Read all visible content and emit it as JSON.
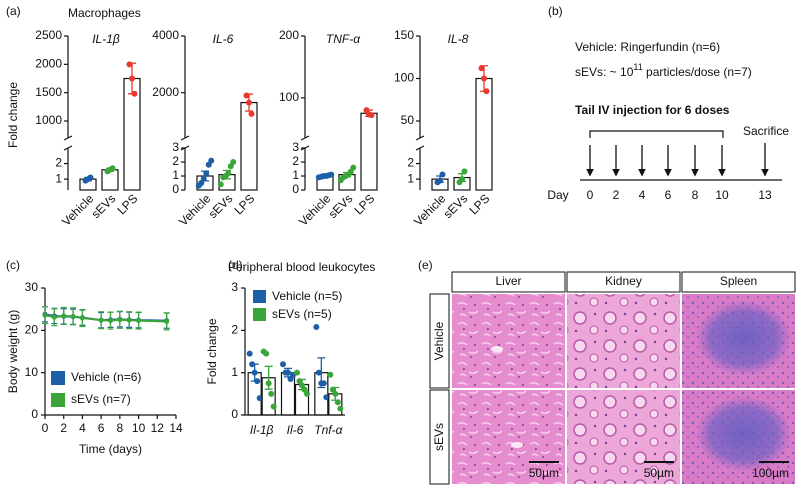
{
  "panel_labels": [
    "(a)",
    "(b)",
    "(c)",
    "(d)",
    "(e)"
  ],
  "panel_a": {
    "title": "Macrophages",
    "ylabel": "Fold change"
  },
  "chart_data": [
    {
      "type": "broken_bar",
      "title": "IL-1β",
      "categories": [
        "Vehicle",
        "sEVs",
        "LPS"
      ],
      "colors": [
        "#1f5fa8",
        "#3aa63a",
        "#e8392e"
      ],
      "values": [
        1.0,
        1.6,
        1750
      ],
      "errors": [
        0.1,
        0.1,
        270
      ],
      "points": [
        [
          0.9,
          1.0,
          1.1
        ],
        [
          1.5,
          1.6,
          1.7
        ],
        [
          2000,
          1750,
          1480
        ]
      ],
      "segments": [
        {
          "ylim": [
            0.3,
            3
          ],
          "yticks": [
            1,
            2
          ]
        },
        {
          "ylim": [
            700,
            2500
          ],
          "yticks": [
            1000,
            1500,
            2000,
            2500
          ]
        }
      ]
    },
    {
      "type": "broken_bar",
      "title": "IL-6",
      "categories": [
        "Vehicle",
        "sEVs",
        "LPS"
      ],
      "colors": [
        "#1f5fa8",
        "#3aa63a",
        "#e8392e"
      ],
      "values": [
        1.0,
        1.1,
        1650
      ],
      "errors": [
        0.35,
        0.3,
        300
      ],
      "points": [
        [
          0.3,
          0.5,
          0.8,
          1.2,
          1.8,
          2.1
        ],
        [
          0.4,
          0.9,
          1.0,
          1.2,
          1.7,
          2.0
        ],
        [
          1900,
          1650,
          1250
        ]
      ],
      "segments": [
        {
          "ylim": [
            0,
            3
          ],
          "yticks": [
            0,
            1,
            2,
            3
          ]
        },
        {
          "ylim": [
            400,
            4000
          ],
          "yticks": [
            2000,
            4000
          ]
        }
      ]
    },
    {
      "type": "broken_bar",
      "title": "TNF-α",
      "categories": [
        "Vehicle",
        "sEVs",
        "LPS"
      ],
      "colors": [
        "#1f5fa8",
        "#3aa63a",
        "#e8392e"
      ],
      "values": [
        1.0,
        1.1,
        75
      ],
      "errors": [
        0.05,
        0.15,
        5
      ],
      "points": [
        [
          0.9,
          0.95,
          1.0,
          1.0,
          1.05,
          1.1
        ],
        [
          0.7,
          0.9,
          1.0,
          1.1,
          1.3,
          1.6
        ],
        [
          80,
          73,
          72
        ]
      ],
      "segments": [
        {
          "ylim": [
            0,
            3
          ],
          "yticks": [
            0,
            1,
            2,
            3
          ]
        },
        {
          "ylim": [
            35,
            200
          ],
          "yticks": [
            100,
            200
          ]
        }
      ]
    },
    {
      "type": "broken_bar",
      "title": "IL-8",
      "categories": [
        "Vehicle",
        "sEVs",
        "LPS"
      ],
      "colors": [
        "#1f5fa8",
        "#3aa63a",
        "#e8392e"
      ],
      "values": [
        1.0,
        1.1,
        100
      ],
      "errors": [
        0.2,
        0.25,
        15
      ],
      "points": [
        [
          0.8,
          0.9,
          1.3
        ],
        [
          0.8,
          1.0,
          1.5
        ],
        [
          112,
          100,
          85
        ]
      ],
      "segments": [
        {
          "ylim": [
            0.3,
            3
          ],
          "yticks": [
            1,
            2
          ]
        },
        {
          "ylim": [
            30,
            150
          ],
          "yticks": [
            50,
            100,
            150
          ]
        }
      ]
    },
    {
      "type": "line",
      "xlabel": "Time (days)",
      "ylabel": "Body weight (g)",
      "x": [
        0,
        1,
        2,
        3,
        4,
        6,
        7,
        8,
        9,
        10,
        13
      ],
      "xlim": [
        0,
        14
      ],
      "xticks": [
        0,
        2,
        4,
        6,
        8,
        10,
        12,
        14
      ],
      "ylim": [
        0,
        30
      ],
      "yticks": [
        0,
        10,
        20,
        30
      ],
      "legend": "lower left",
      "series": [
        {
          "name": "Vehicle (n=6)",
          "color": "#1f5fa8",
          "values": [
            23.8,
            23.4,
            23.3,
            23.2,
            23.0,
            22.4,
            22.5,
            22.6,
            22.5,
            22.4,
            22.3
          ],
          "errors": [
            1.8,
            1.8,
            1.8,
            1.8,
            1.8,
            1.8,
            1.8,
            1.8,
            1.8,
            1.8,
            1.8
          ]
        },
        {
          "name": "sEVs (n=7)",
          "color": "#3aa63a",
          "values": [
            23.6,
            23.1,
            23.4,
            23.3,
            22.9,
            22.4,
            22.3,
            22.5,
            22.4,
            22.3,
            22.1
          ],
          "errors": [
            2.0,
            2.0,
            2.0,
            2.0,
            2.0,
            2.0,
            2.0,
            2.0,
            2.0,
            2.0,
            2.0
          ]
        }
      ]
    },
    {
      "type": "grouped_bar",
      "title": "Peripheral blood leukocytes",
      "ylabel": "Fold change",
      "categories": [
        "Il-1β",
        "Il-6",
        "Tnf-α"
      ],
      "ylim": [
        0,
        3
      ],
      "yticks": [
        0,
        1,
        2,
        3
      ],
      "legend": "upper left",
      "series": [
        {
          "name": "Vehicle (n=5)",
          "color": "#1f5fa8",
          "values": [
            1.0,
            1.0,
            1.0
          ],
          "errors": [
            0.2,
            0.1,
            0.35
          ],
          "points": [
            [
              1.45,
              1.2,
              1.0,
              0.8,
              0.4
            ],
            [
              1.2,
              1.0,
              1.0,
              0.85,
              0.95
            ],
            [
              2.08,
              1.0,
              0.75,
              0.75,
              0.42
            ]
          ]
        },
        {
          "name": "sEVs (n=5)",
          "color": "#3aa63a",
          "values": [
            0.88,
            0.72,
            0.5
          ],
          "errors": [
            0.27,
            0.12,
            0.15
          ],
          "points": [
            [
              1.5,
              1.45,
              0.75,
              0.5,
              0.2
            ],
            [
              1.0,
              0.8,
              0.7,
              0.6,
              0.5
            ],
            [
              0.95,
              0.6,
              0.5,
              0.3,
              0.15
            ]
          ]
        }
      ]
    }
  ],
  "protocol": {
    "groups": [
      "Vehicle: Ringerfundin (n=6)"
    ],
    "dose": [
      "sEVs: ~ 10",
      "11",
      " particles/dose (n=7)"
    ],
    "injection": "Tail IV injection for 6 doses",
    "endpoint": "Sacrifice",
    "axis_label": "Day",
    "days": [
      0,
      2,
      4,
      6,
      8,
      10,
      13
    ]
  },
  "histology": {
    "columns": [
      "Liver",
      "Kidney",
      "Spleen"
    ],
    "rows": [
      "Vehicle",
      "sEVs"
    ],
    "scale_bars": [
      "50µm",
      "50µm",
      "100µm"
    ]
  }
}
